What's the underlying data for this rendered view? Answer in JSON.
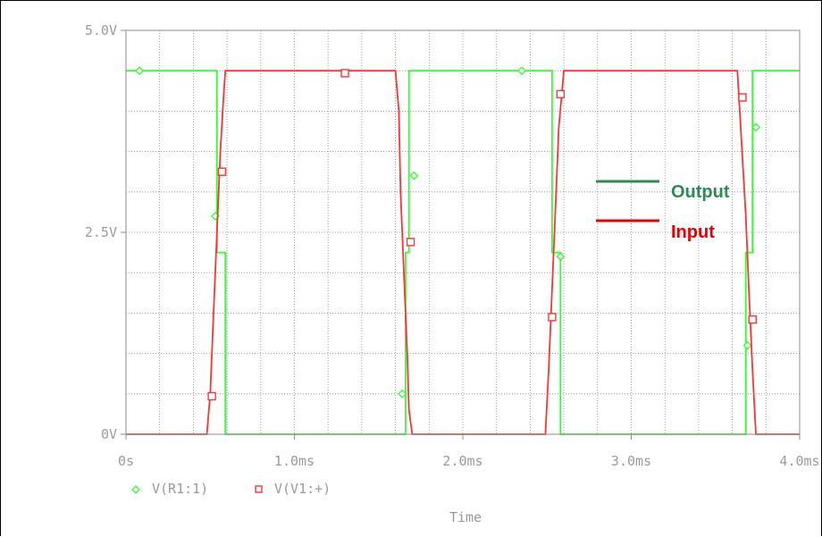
{
  "chart_data": {
    "type": "line",
    "xlabel": "Time",
    "ylabel": "",
    "xlim": [
      0,
      4.0
    ],
    "ylim": [
      0,
      5.0
    ],
    "x_unit": "ms",
    "grid": true,
    "x_ticks": [
      {
        "value": 0,
        "label": "0s"
      },
      {
        "value": 1.0,
        "label": "1.0ms"
      },
      {
        "value": 2.0,
        "label": "2.0ms"
      },
      {
        "value": 3.0,
        "label": "3.0ms"
      },
      {
        "value": 4.0,
        "label": "4.0ms"
      }
    ],
    "y_ticks": [
      {
        "value": 0,
        "label": "0V"
      },
      {
        "value": 2.5,
        "label": "2.5V"
      },
      {
        "value": 5.0,
        "label": "5.0V"
      }
    ],
    "legend": {
      "placement": "bottom-left",
      "items": [
        {
          "label": "V(R1:1)",
          "marker": "diamond",
          "color": "#33ff33"
        },
        {
          "label": "V(V1:+)",
          "marker": "square",
          "color": "#ff3333"
        }
      ]
    },
    "annotations": [
      {
        "text": "Output",
        "color": "#2e8b57"
      },
      {
        "text": "Input",
        "color": "#e60000"
      }
    ],
    "series": [
      {
        "name": "V(R1:1)",
        "color": "#33ff33",
        "marker": "diamond",
        "points": [
          [
            0,
            4.5
          ],
          [
            0.54,
            4.5
          ],
          [
            0.54,
            2.25
          ],
          [
            0.59,
            2.25
          ],
          [
            0.59,
            0
          ],
          [
            1.66,
            0
          ],
          [
            1.66,
            2.25
          ],
          [
            1.68,
            2.25
          ],
          [
            1.68,
            4.5
          ],
          [
            2.53,
            4.5
          ],
          [
            2.53,
            2.25
          ],
          [
            2.58,
            2.25
          ],
          [
            2.58,
            0
          ],
          [
            3.68,
            0
          ],
          [
            3.68,
            2.25
          ],
          [
            3.72,
            2.25
          ],
          [
            3.72,
            4.5
          ],
          [
            4.0,
            4.5
          ]
        ],
        "marker_points": [
          [
            0.08,
            4.5
          ],
          [
            0.53,
            2.7
          ],
          [
            1.64,
            0.5
          ],
          [
            1.71,
            3.2
          ],
          [
            2.35,
            4.5
          ],
          [
            2.58,
            2.2
          ],
          [
            3.69,
            1.1
          ],
          [
            3.74,
            3.8
          ]
        ]
      },
      {
        "name": "V(V1:+)",
        "color": "#ff3333",
        "marker": "square",
        "points": [
          [
            0,
            0
          ],
          [
            0.48,
            0
          ],
          [
            0.5,
            0.5
          ],
          [
            0.52,
            1.5
          ],
          [
            0.54,
            2.5
          ],
          [
            0.56,
            3.5
          ],
          [
            0.58,
            4.2
          ],
          [
            0.59,
            4.5
          ],
          [
            1.6,
            4.5
          ],
          [
            1.62,
            4.0
          ],
          [
            1.63,
            3.0
          ],
          [
            1.65,
            2.0
          ],
          [
            1.67,
            1.0
          ],
          [
            1.68,
            0.3
          ],
          [
            1.7,
            0
          ],
          [
            2.49,
            0
          ],
          [
            2.51,
            0.8
          ],
          [
            2.53,
            1.8
          ],
          [
            2.55,
            2.8
          ],
          [
            2.57,
            3.8
          ],
          [
            2.6,
            4.5
          ],
          [
            3.63,
            4.5
          ],
          [
            3.65,
            3.8
          ],
          [
            3.68,
            2.7
          ],
          [
            3.7,
            1.7
          ],
          [
            3.72,
            0.8
          ],
          [
            3.74,
            0
          ],
          [
            4.0,
            0
          ]
        ],
        "marker_points": [
          [
            0.51,
            0.47
          ],
          [
            0.57,
            3.25
          ],
          [
            1.3,
            4.47
          ],
          [
            1.69,
            2.38
          ],
          [
            2.53,
            1.45
          ],
          [
            2.58,
            4.21
          ],
          [
            3.66,
            4.17
          ],
          [
            3.72,
            1.42
          ]
        ]
      }
    ]
  }
}
